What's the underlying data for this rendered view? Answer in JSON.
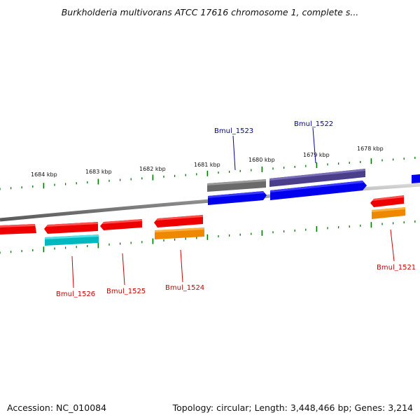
{
  "title": "Burkholderia multivorans ATCC 17616 chromosome 1, complete s...",
  "footer": {
    "accession": "Accession: NC_010084",
    "summary": "Topology: circular; Length: 3,448,466 bp; Genes: 3,214"
  },
  "ticks": [
    {
      "label": "1684 kbp"
    },
    {
      "label": "1683 kbp"
    },
    {
      "label": "1682 kbp"
    },
    {
      "label": "1681 kbp"
    },
    {
      "label": "1680 kbp"
    },
    {
      "label": "1679 kbp"
    },
    {
      "label": "1678 kbp"
    }
  ],
  "gene_labels": [
    {
      "name": "Bmul_1523",
      "color": "#0000aa"
    },
    {
      "name": "Bmul_1522",
      "color": "#0000aa"
    },
    {
      "name": "Bmul_1526",
      "color": "#cc0000"
    },
    {
      "name": "Bmul_1525",
      "color": "#cc0000"
    },
    {
      "name": "Bmul_1524",
      "color": "#cc0000"
    },
    {
      "name": "Bmul_1521",
      "color": "#cc0000"
    }
  ],
  "colors": {
    "forward_cds": "#0000ee",
    "forward_feature_gray": "#6a6a6a",
    "forward_feature_purple": "#4b3f8c",
    "reverse_cds": "#ee0000",
    "reverse_feature_cyan": "#00b8c0",
    "reverse_feature_orange": "#ee8800",
    "tick": "#007700",
    "backbone": "#8a8a8a"
  }
}
